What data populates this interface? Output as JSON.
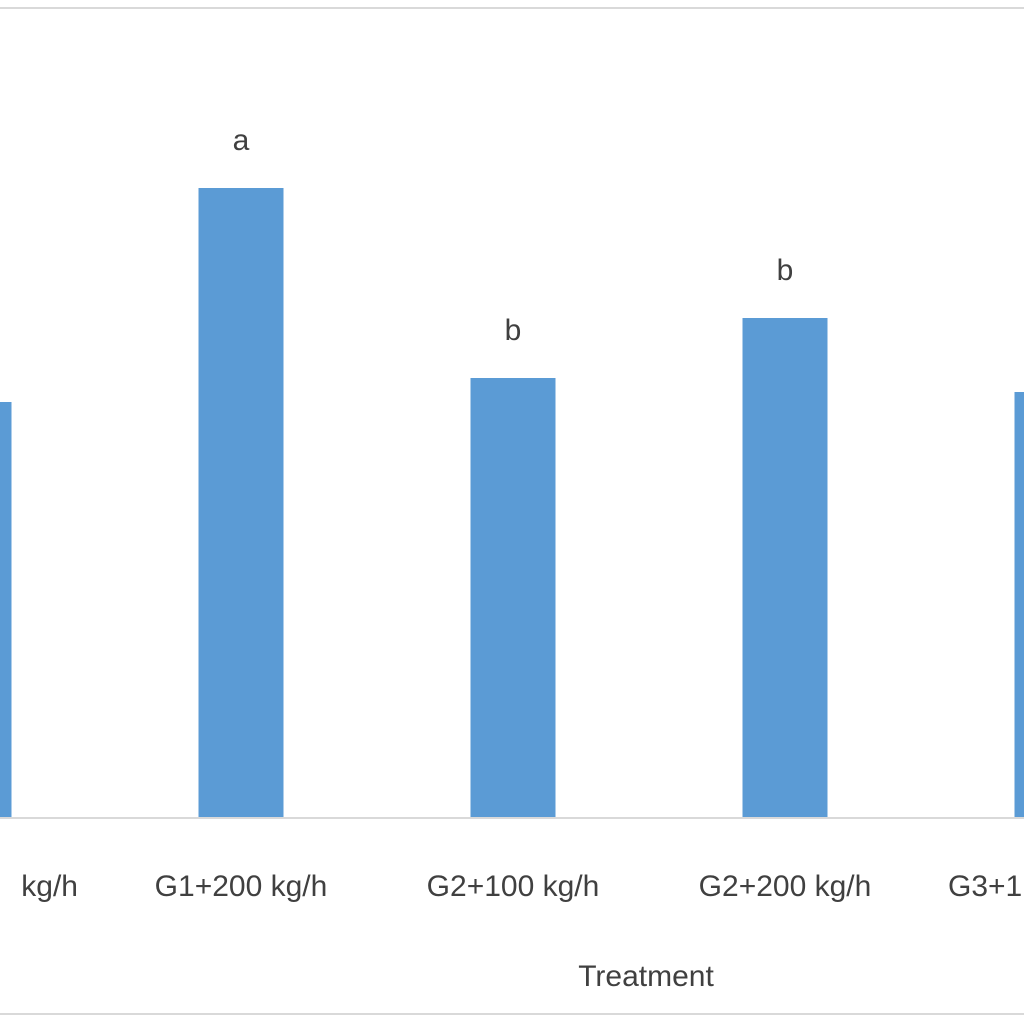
{
  "chart_data": {
    "type": "bar",
    "x_label": "Treatment",
    "categories": [
      "kg/h",
      "G1+200 kg/h",
      "G2+100 kg/h",
      "G2+200 kg/h",
      "G3+1"
    ],
    "values": [
      416,
      630,
      440,
      500,
      426
    ],
    "value_labels": [
      null,
      "a",
      "b",
      "b",
      null
    ],
    "color": "#5b9bd5"
  }
}
